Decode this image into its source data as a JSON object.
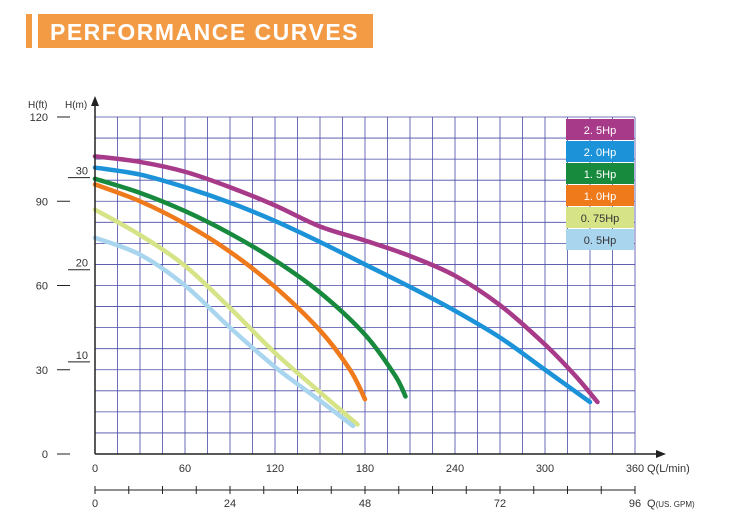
{
  "page_title": "PERFORMANCE CURVES",
  "colors": {
    "banner": "#f39a45",
    "grid": "#4a4aa8",
    "axis": "#222222"
  },
  "chart_data": {
    "type": "line",
    "title": "",
    "axes": {
      "h_ft_label": "H(ft)",
      "h_m_label": "H(m)",
      "q_lmin_label": "Q(L/min)",
      "q_gpm_label": "Q(US. GPM)",
      "h_ft_ticks": [
        "0",
        "30",
        "60",
        "90",
        "120"
      ],
      "h_m_ticks": [
        "10",
        "20",
        "30"
      ],
      "q_lmin_ticks": [
        "0",
        "60",
        "120",
        "180",
        "240",
        "300",
        "360"
      ],
      "q_gpm_ticks": [
        "0",
        "24",
        "48",
        "72",
        "96"
      ],
      "xlim": [
        0,
        360
      ],
      "ylim_ft": [
        0,
        120
      ],
      "grid": true
    },
    "legend_position": "top-right",
    "series": [
      {
        "name": "2. 5Hp",
        "color": "#a83a8a",
        "x": [
          0,
          30,
          60,
          90,
          120,
          150,
          180,
          210,
          240,
          270,
          300,
          320,
          335
        ],
        "y": [
          106,
          104,
          100.5,
          95,
          88.5,
          81,
          76,
          70.5,
          63.5,
          53,
          39,
          28,
          18.5
        ]
      },
      {
        "name": "2. 0Hp",
        "color": "#1c93d8",
        "x": [
          0,
          30,
          60,
          90,
          120,
          150,
          180,
          210,
          240,
          270,
          300,
          330
        ],
        "y": [
          102,
          99.5,
          95,
          89.5,
          83,
          75.5,
          67.5,
          59.5,
          51,
          41.5,
          30,
          18.5
        ]
      },
      {
        "name": "1. 5Hp",
        "color": "#178a3e",
        "x": [
          0,
          30,
          60,
          90,
          120,
          150,
          180,
          200,
          207
        ],
        "y": [
          98,
          93,
          86.5,
          78.5,
          69,
          57.5,
          42.5,
          28,
          20.5
        ]
      },
      {
        "name": "1. 0Hp",
        "color": "#ee7a1c",
        "x": [
          0,
          30,
          60,
          90,
          120,
          150,
          170,
          180
        ],
        "y": [
          96,
          90,
          82,
          72,
          59.5,
          44,
          30,
          19.5
        ]
      },
      {
        "name": "0. 75Hp",
        "color": "#d6e387",
        "x": [
          0,
          30,
          60,
          90,
          120,
          150,
          175
        ],
        "y": [
          87,
          78,
          67,
          52,
          36,
          22,
          10.5
        ]
      },
      {
        "name": "0. 5Hp",
        "color": "#a9d6ee",
        "x": [
          0,
          30,
          60,
          90,
          120,
          150,
          172
        ],
        "y": [
          77,
          71,
          60,
          45,
          31,
          19,
          10
        ]
      }
    ]
  }
}
